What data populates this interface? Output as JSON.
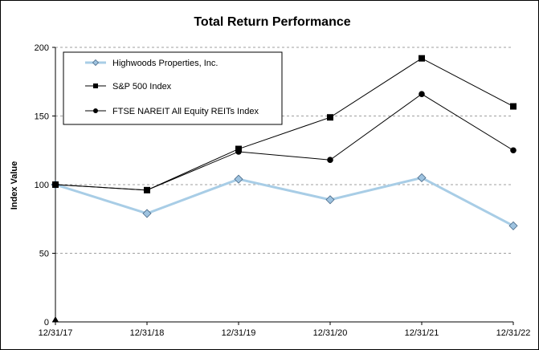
{
  "chart_data": {
    "type": "line",
    "title": "Total Return Performance",
    "xlabel": "",
    "ylabel": "Index Value",
    "categories": [
      "12/31/17",
      "12/31/18",
      "12/31/19",
      "12/31/20",
      "12/31/21",
      "12/31/22"
    ],
    "ylim": [
      0,
      200
    ],
    "yticks": [
      "0",
      "50",
      "100",
      "150",
      "200"
    ],
    "grid": "horizontal dashed",
    "legend_position": "top-left",
    "series": [
      {
        "name": "Highwoods Properties, Inc.",
        "marker": "diamond",
        "color": "#a8cde6",
        "values": [
          100,
          79,
          104,
          89,
          105,
          70
        ]
      },
      {
        "name": "S&P 500 Index",
        "marker": "square",
        "color": "#000000",
        "values": [
          100,
          96,
          126,
          149,
          192,
          157
        ]
      },
      {
        "name": "FTSE NAREIT All Equity REITs Index",
        "marker": "circle",
        "color": "#000000",
        "values": [
          100,
          96,
          124,
          118,
          166,
          125
        ]
      }
    ]
  }
}
